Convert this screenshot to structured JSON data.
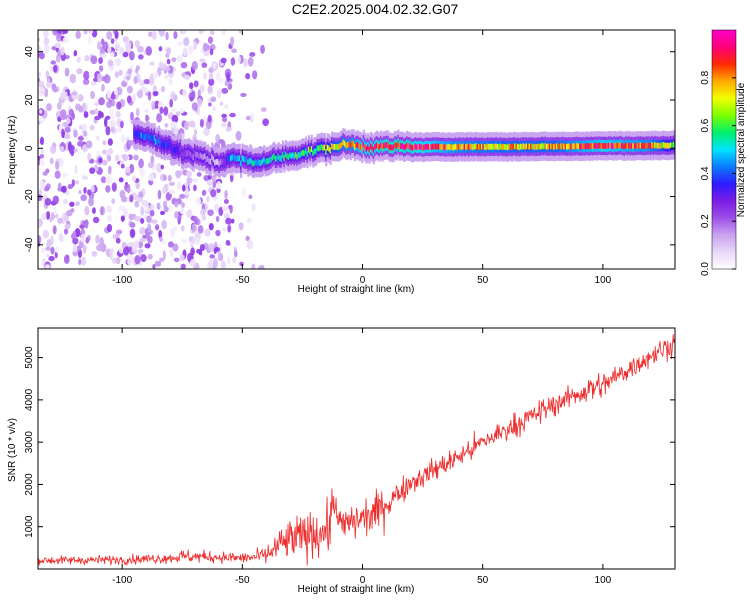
{
  "figure": {
    "title": "C2E2.2025.004.02.32.G07"
  },
  "colors": {
    "snr_line": "#ee2a2a",
    "axis": "#000000",
    "background": "#ffffff"
  },
  "chart_data": [
    {
      "type": "heatmap",
      "xlabel": "Height of straight line (km)",
      "ylabel": "Frequency (Hz)",
      "xlim": [
        -135,
        130
      ],
      "ylim": [
        -50,
        49
      ],
      "xticks": [
        -100,
        -50,
        0,
        50,
        100
      ],
      "yticks": [
        -40,
        -20,
        0,
        20,
        40
      ],
      "colorbar": {
        "label": "Normalized spectral amplitude",
        "range": [
          0.0,
          1.0
        ],
        "ticks": [
          "0.0",
          "0.2",
          "0.4",
          "0.6",
          "0.8"
        ],
        "tick_values": [
          0.0,
          0.2,
          0.4,
          0.6,
          0.8
        ],
        "colormap": [
          "#ffffff",
          "#e8d8f8",
          "#c9a3f0",
          "#9d4ee8",
          "#7a1ce6",
          "#2d1bff",
          "#0a7cff",
          "#00e5ff",
          "#00f06a",
          "#7cff00",
          "#f2ff00",
          "#ffaa00",
          "#ff2a00",
          "#ff007a",
          "#ff00cc"
        ]
      },
      "noise_region_x": [
        -135,
        -40
      ],
      "ridge": {
        "x": [
          -95,
          -88,
          -80,
          -75,
          -70,
          -65,
          -60,
          -55,
          -50,
          -45,
          -40,
          -35,
          -30,
          -25,
          -20,
          -15,
          -10,
          -5,
          0,
          10,
          20,
          40,
          60,
          80,
          100,
          120,
          130
        ],
        "frequency": [
          6,
          4,
          1,
          -2,
          -3,
          -4,
          -6,
          -4,
          -5,
          -6,
          -5,
          -4,
          -3,
          -2,
          -1,
          0,
          1,
          1.5,
          0.8,
          0.5,
          0.5,
          0.6,
          0.6,
          0.8,
          1.0,
          1.1,
          1.2
        ],
        "amplitude": [
          0.4,
          0.45,
          0.35,
          0.25,
          0.2,
          0.15,
          0.1,
          0.45,
          0.5,
          0.5,
          0.5,
          0.55,
          0.55,
          0.6,
          0.6,
          0.65,
          0.75,
          0.8,
          0.9,
          0.95,
          0.95,
          0.8,
          0.75,
          0.75,
          0.9,
          0.8,
          0.6
        ]
      }
    },
    {
      "type": "line",
      "xlabel": "Height of straight line (km)",
      "ylabel": "SNR (10 * v/v)",
      "xlim": [
        -135,
        130
      ],
      "ylim": [
        0,
        5700
      ],
      "xticks": [
        -100,
        -50,
        0,
        50,
        100
      ],
      "yticks": [
        1000,
        2000,
        3000,
        4000,
        5000
      ],
      "grid": false,
      "series": [
        {
          "color": "#ee2a2a",
          "x": [
            -135,
            -100,
            -80,
            -75,
            -60,
            -50,
            -45,
            -40,
            -35,
            -30,
            -25,
            -20,
            -15,
            -12,
            -10,
            -5,
            0,
            5,
            10,
            15,
            20,
            30,
            40,
            50,
            60,
            70,
            80,
            90,
            97,
            100,
            110,
            120,
            130
          ],
          "mean": [
            200,
            220,
            260,
            300,
            280,
            260,
            280,
            320,
            550,
            700,
            750,
            850,
            900,
            1300,
            1000,
            1100,
            1200,
            1300,
            1550,
            1800,
            2050,
            2350,
            2650,
            3000,
            3300,
            3600,
            3900,
            4150,
            4300,
            4350,
            4700,
            5050,
            5350
          ],
          "spread": [
            90,
            100,
            110,
            150,
            120,
            120,
            130,
            200,
            350,
            450,
            500,
            500,
            550,
            700,
            450,
            400,
            400,
            450,
            400,
            300,
            250,
            250,
            250,
            250,
            250,
            250,
            250,
            250,
            350,
            250,
            250,
            250,
            250
          ]
        }
      ]
    }
  ]
}
